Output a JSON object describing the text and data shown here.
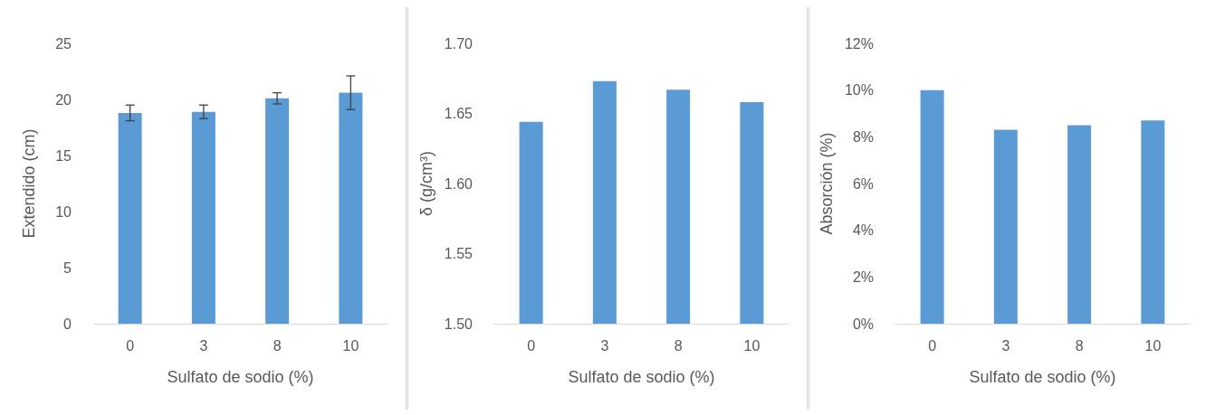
{
  "chart_data": [
    {
      "type": "bar",
      "xlabel": "Sulfato de sodio (%)",
      "ylabel": "Extendido (cm)",
      "categories": [
        "0",
        "3",
        "8",
        "10"
      ],
      "values": [
        18.8,
        18.9,
        20.1,
        20.6
      ],
      "errors": [
        0.7,
        0.6,
        0.5,
        1.5
      ],
      "color": "#5b9bd5",
      "ylim": [
        0,
        25
      ],
      "yticks": [
        0,
        5,
        10,
        15,
        20,
        25
      ]
    },
    {
      "type": "bar",
      "xlabel": "Sulfato de sodio (%)",
      "ylabel": "δ (g/cm³)",
      "categories": [
        "0",
        "3",
        "8",
        "10"
      ],
      "values": [
        1.644,
        1.673,
        1.667,
        1.658
      ],
      "color": "#5b9bd5",
      "ylim": [
        1.5,
        1.7
      ],
      "yticks": [
        {
          "value": 1.5,
          "label": "1.50"
        },
        {
          "value": 1.55,
          "label": "1.55"
        },
        {
          "value": 1.6,
          "label": "1.60"
        },
        {
          "value": 1.65,
          "label": "1.65"
        },
        {
          "value": 1.7,
          "label": "1.70"
        }
      ]
    },
    {
      "type": "bar",
      "xlabel": "Sulfato de sodio (%)",
      "ylabel": "Absorción (%)",
      "categories": [
        "0",
        "3",
        "8",
        "10"
      ],
      "values": [
        10.0,
        8.3,
        8.5,
        8.7
      ],
      "color": "#5b9bd5",
      "ylim": [
        0,
        12
      ],
      "yticks": [
        {
          "value": 0,
          "label": "0%"
        },
        {
          "value": 2,
          "label": "2%"
        },
        {
          "value": 4,
          "label": "4%"
        },
        {
          "value": 6,
          "label": "6%"
        },
        {
          "value": 8,
          "label": "8%"
        },
        {
          "value": 10,
          "label": "10%"
        },
        {
          "value": 12,
          "label": "12%"
        }
      ]
    }
  ]
}
